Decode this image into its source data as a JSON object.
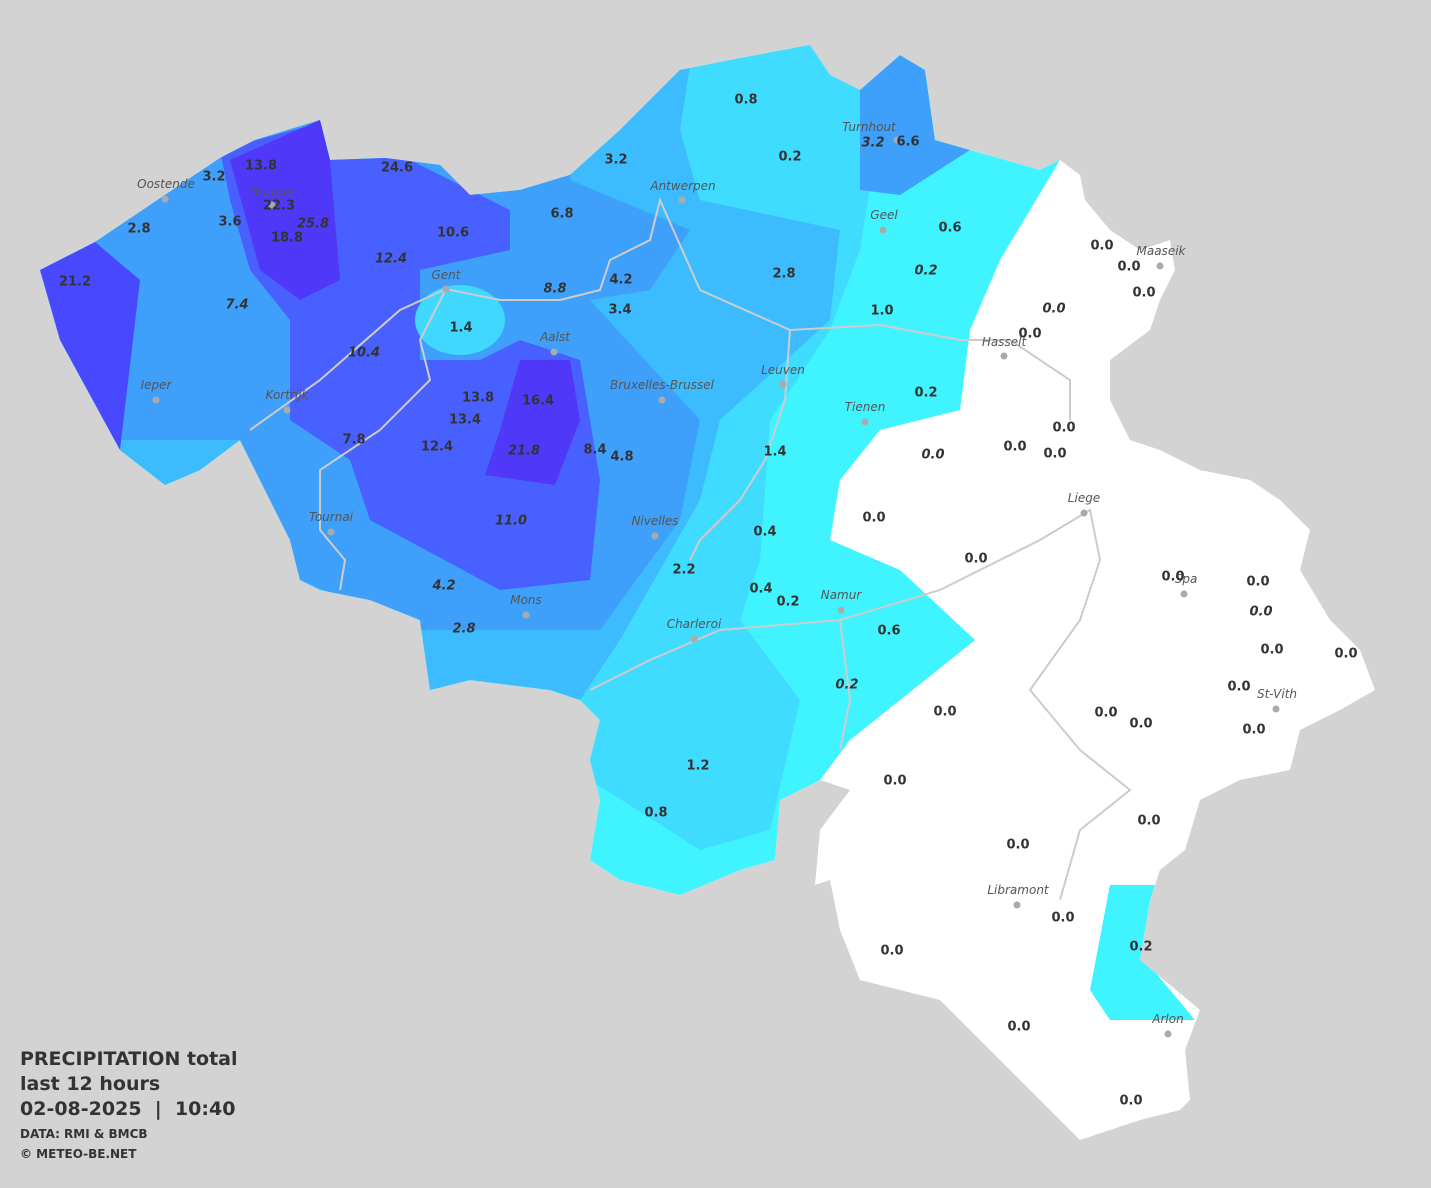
{
  "title": {
    "line1": "PRECIPITATION total",
    "line2": "last 12 hours",
    "datetime": "02-08-2025  |  10:40",
    "source": "DATA: RMI & BMCB",
    "copyright": "© METEO-BE.NET"
  },
  "cities": [
    "Oostende",
    "Brugge",
    "Antwerpen",
    "Turnhout",
    "Geel",
    "Maaseik",
    "Gent",
    "Aalst",
    "Hasselt",
    "Leuven",
    "Ieper",
    "Kortrijk",
    "Bruxelles-Brussel",
    "Tienen",
    "Liege",
    "Tournai",
    "Nivelles",
    "Spa",
    "Namur",
    "Mons",
    "Charleroi",
    "St-Vith",
    "Libramont",
    "Arlon"
  ],
  "readings": [
    {
      "text": "0.8",
      "italic": false
    },
    {
      "text": "0.2",
      "italic": false
    },
    {
      "text": "3.2",
      "italic": true
    },
    {
      "text": "6.6",
      "italic": false
    },
    {
      "text": "3.2",
      "italic": false
    },
    {
      "text": "13.8",
      "italic": false
    },
    {
      "text": "24.6",
      "italic": false
    },
    {
      "text": "3.2",
      "italic": false
    },
    {
      "text": "22.3",
      "italic": false
    },
    {
      "text": "25.8",
      "italic": true
    },
    {
      "text": "3.6",
      "italic": false
    },
    {
      "text": "6.8",
      "italic": false
    },
    {
      "text": "18.8",
      "italic": false
    },
    {
      "text": "2.8",
      "italic": false
    },
    {
      "text": "10.6",
      "italic": false
    },
    {
      "text": "0.6",
      "italic": false
    },
    {
      "text": "0.0",
      "italic": false
    },
    {
      "text": "0.0",
      "italic": false
    },
    {
      "text": "12.4",
      "italic": true
    },
    {
      "text": "0.2",
      "italic": true
    },
    {
      "text": "2.8",
      "italic": false
    },
    {
      "text": "4.2",
      "italic": false
    },
    {
      "text": "21.2",
      "italic": false
    },
    {
      "text": "8.8",
      "italic": true
    },
    {
      "text": "0.0",
      "italic": false
    },
    {
      "text": "7.4",
      "italic": true
    },
    {
      "text": "3.4",
      "italic": false
    },
    {
      "text": "1.0",
      "italic": false
    },
    {
      "text": "0.0",
      "italic": true
    },
    {
      "text": "1.4",
      "italic": false
    },
    {
      "text": "0.0",
      "italic": false
    },
    {
      "text": "10.4",
      "italic": true
    },
    {
      "text": "0.2",
      "italic": false
    },
    {
      "text": "16.4",
      "italic": false
    },
    {
      "text": "13.8",
      "italic": false
    },
    {
      "text": "13.4",
      "italic": false
    },
    {
      "text": "0.0",
      "italic": false
    },
    {
      "text": "12.4",
      "italic": false
    },
    {
      "text": "7.8",
      "italic": false
    },
    {
      "text": "8.4",
      "italic": false
    },
    {
      "text": "4.8",
      "italic": false
    },
    {
      "text": "21.8",
      "italic": true
    },
    {
      "text": "1.4",
      "italic": false
    },
    {
      "text": "0.0",
      "italic": true
    },
    {
      "text": "0.0",
      "italic": false
    },
    {
      "text": "0.0",
      "italic": false
    },
    {
      "text": "11.0",
      "italic": true
    },
    {
      "text": "0.0",
      "italic": false
    },
    {
      "text": "0.4",
      "italic": false
    },
    {
      "text": "2.2",
      "italic": false
    },
    {
      "text": "0.0",
      "italic": false
    },
    {
      "text": "4.2",
      "italic": true
    },
    {
      "text": "0.4",
      "italic": false
    },
    {
      "text": "0.2",
      "italic": false
    },
    {
      "text": "0.0",
      "italic": false
    },
    {
      "text": "0.0",
      "italic": false
    },
    {
      "text": "0.0",
      "italic": true
    },
    {
      "text": "2.8",
      "italic": true
    },
    {
      "text": "0.6",
      "italic": false
    },
    {
      "text": "0.0",
      "italic": false
    },
    {
      "text": "0.0",
      "italic": false
    },
    {
      "text": "0.2",
      "italic": true
    },
    {
      "text": "0.0",
      "italic": false
    },
    {
      "text": "0.0",
      "italic": false
    },
    {
      "text": "0.0",
      "italic": false
    },
    {
      "text": "0.0",
      "italic": false
    },
    {
      "text": "0.0",
      "italic": false
    },
    {
      "text": "1.2",
      "italic": false
    },
    {
      "text": "0.0",
      "italic": false
    },
    {
      "text": "0.8",
      "italic": false
    },
    {
      "text": "0.0",
      "italic": false
    },
    {
      "text": "0.0",
      "italic": false
    },
    {
      "text": "0.0",
      "italic": false
    },
    {
      "text": "0.2",
      "italic": false
    },
    {
      "text": "0.0",
      "italic": false
    },
    {
      "text": "0.0",
      "italic": false
    },
    {
      "text": "0.0",
      "italic": false
    }
  ]
}
